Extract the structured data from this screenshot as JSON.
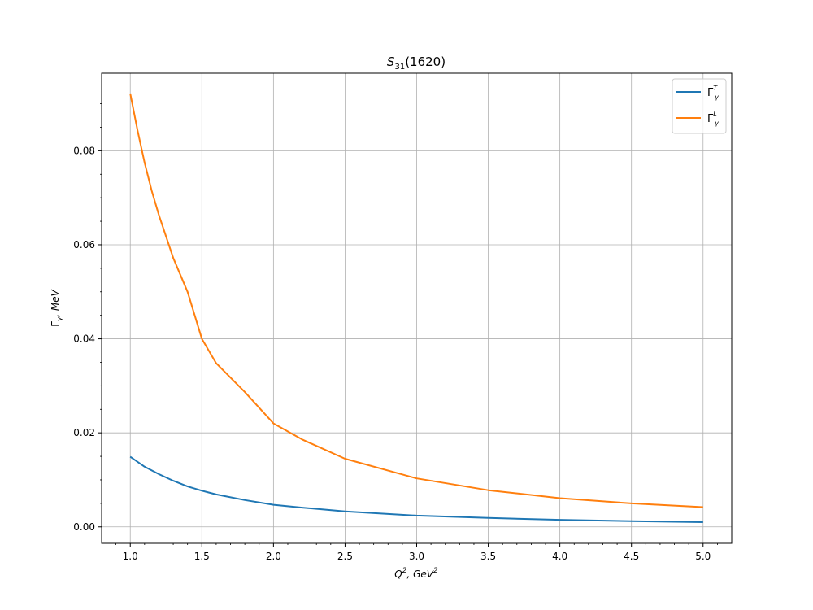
{
  "chart_data": {
    "type": "line",
    "title": {
      "base": "S",
      "sub": "31",
      "rest": "(1620)"
    },
    "xlabel": {
      "base": "Q",
      "sup": "2",
      "sep": ", ",
      "unit": "GeV",
      "unit_sup": "2"
    },
    "ylabel": {
      "base": "Γ",
      "sub": "γ",
      "rest": ", MeV"
    },
    "xlim": [
      0.8,
      5.2
    ],
    "ylim": [
      -0.0035,
      0.0965
    ],
    "xticks": [
      1.0,
      1.5,
      2.0,
      2.5,
      3.0,
      3.5,
      4.0,
      4.5,
      5.0
    ],
    "xtick_labels": [
      "1.0",
      "1.5",
      "2.0",
      "2.5",
      "3.0",
      "3.5",
      "4.0",
      "4.5",
      "5.0"
    ],
    "yticks": [
      0.0,
      0.02,
      0.04,
      0.06,
      0.08
    ],
    "ytick_labels": [
      "0.00",
      "0.02",
      "0.04",
      "0.06",
      "0.08"
    ],
    "grid": true,
    "legend_position": "top-right",
    "series": [
      {
        "name": {
          "base": "Γ",
          "sup": "T",
          "sub": "γ"
        },
        "color": "#1f77b4",
        "x": [
          1.0,
          1.1,
          1.2,
          1.3,
          1.4,
          1.5,
          1.6,
          1.8,
          2.0,
          2.2,
          2.5,
          3.0,
          3.5,
          4.0,
          4.5,
          5.0
        ],
        "y": [
          0.0149,
          0.0128,
          0.0112,
          0.0098,
          0.0086,
          0.0077,
          0.0069,
          0.0057,
          0.0047,
          0.0041,
          0.0033,
          0.0024,
          0.0019,
          0.0015,
          0.0012,
          0.001
        ]
      },
      {
        "name": {
          "base": "Γ",
          "sup": "L",
          "sub": "γ"
        },
        "color": "#ff7f0e",
        "x": [
          1.0,
          1.05,
          1.1,
          1.15,
          1.2,
          1.3,
          1.4,
          1.5,
          1.6,
          1.8,
          2.0,
          2.2,
          2.5,
          3.0,
          3.5,
          4.0,
          4.5,
          5.0
        ],
        "y": [
          0.0922,
          0.0845,
          0.0775,
          0.0715,
          0.0663,
          0.0572,
          0.05,
          0.04,
          0.0348,
          0.0287,
          0.022,
          0.0186,
          0.0145,
          0.0103,
          0.0078,
          0.0061,
          0.005,
          0.0042
        ]
      }
    ]
  }
}
